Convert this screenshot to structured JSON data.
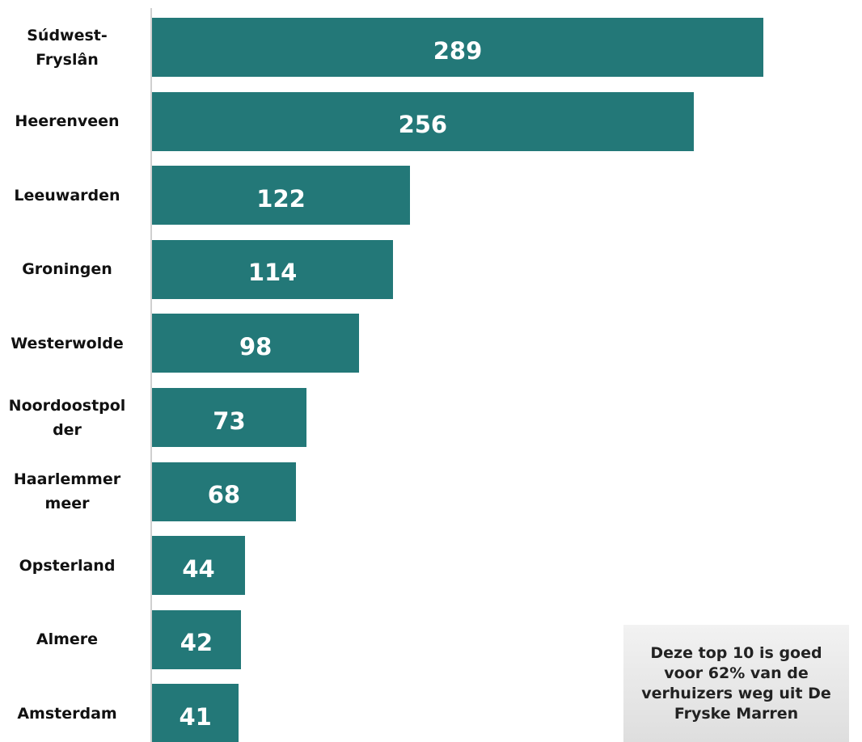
{
  "chart_data": {
    "type": "bar",
    "orientation": "horizontal",
    "categories": [
      "Súdwest-Fryslân",
      "Heerenveen",
      "Leeuwarden",
      "Groningen",
      "Westerwolde",
      "Noordoostpolder",
      "Haarlemmermeer",
      "Opsterland",
      "Almere",
      "Amsterdam"
    ],
    "values": [
      289,
      256,
      122,
      114,
      98,
      73,
      68,
      44,
      42,
      41
    ],
    "color": "#237878",
    "annotation": "Deze top 10 is goed voor 62% van de verhuizers weg uit De Fryske Marren"
  }
}
